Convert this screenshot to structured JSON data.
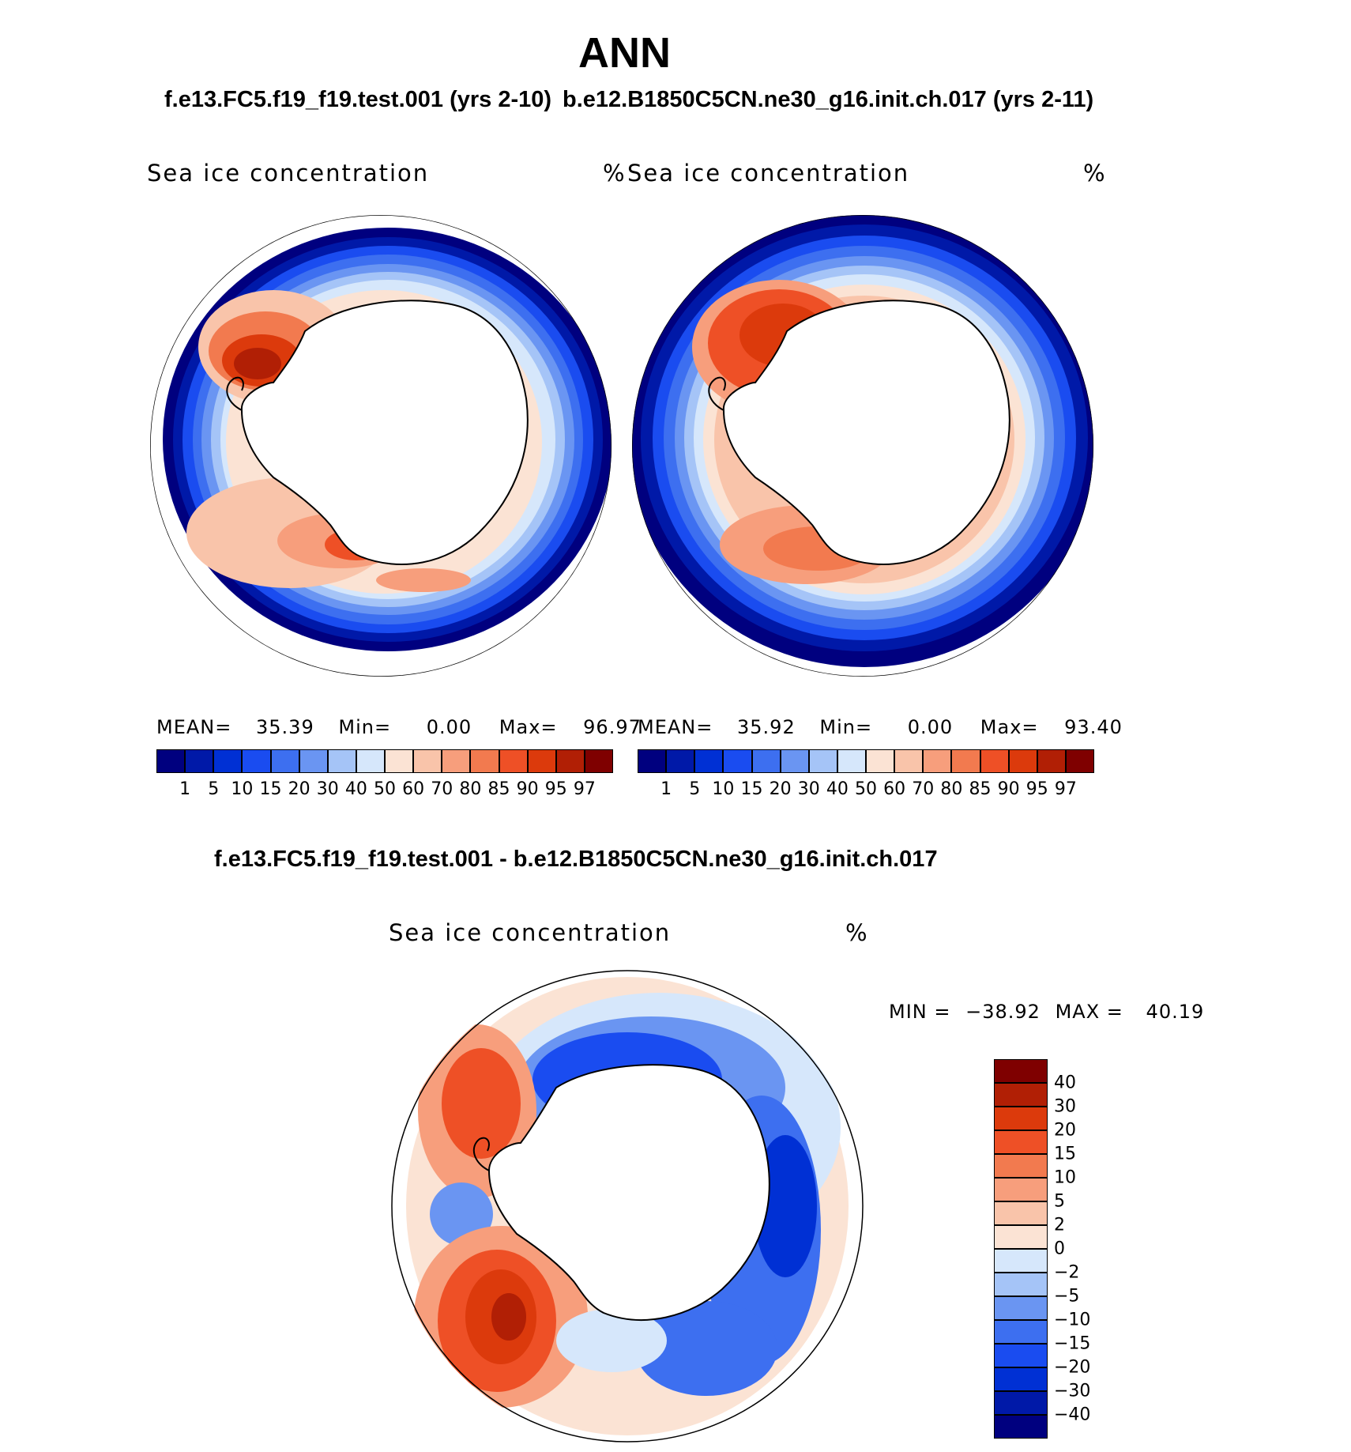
{
  "title": "ANN",
  "panels": [
    {
      "case_title": "f.e13.FC5.f19_f19.test.001 (yrs 2-10)",
      "variable_label": "Sea ice concentration",
      "units": "%",
      "stats": {
        "mean_label": "MEAN=",
        "mean": "35.39",
        "min_label": "Min=",
        "min": "0.00",
        "max_label": "Max=",
        "max": "96.97"
      }
    },
    {
      "case_title": "b.e12.B1850C5CN.ne30_g16.init.ch.017 (yrs 2-11)",
      "variable_label": "Sea ice concentration",
      "units": "%",
      "stats": {
        "mean_label": "MEAN=",
        "mean": "35.92",
        "min_label": "Min=",
        "min": "0.00",
        "max_label": "Max=",
        "max": "93.40"
      }
    }
  ],
  "abs_colorbar": {
    "labels": [
      "1",
      "5",
      "10",
      "15",
      "20",
      "30",
      "40",
      "50",
      "60",
      "70",
      "80",
      "85",
      "90",
      "95",
      "97"
    ],
    "colors": [
      "#00007f",
      "#0019a8",
      "#0030d4",
      "#1a4cf0",
      "#3d6ff0",
      "#6a95f2",
      "#a5c4f7",
      "#d6e7fb",
      "#fbe3d4",
      "#f9c4aa",
      "#f79e7c",
      "#f27a4f",
      "#ee5026",
      "#dc3a0c",
      "#b11f05",
      "#7f0000"
    ]
  },
  "diff": {
    "case_title": "f.e13.FC5.f19_f19.test.001 - b.e12.B1850C5CN.ne30_g16.init.ch.017",
    "variable_label": "Sea ice concentration",
    "units": "%",
    "minmax": {
      "min_label": "MIN =",
      "min": "−38.92",
      "max_label": "MAX =",
      "max": "40.19"
    },
    "colorbar": {
      "labels": [
        "40",
        "30",
        "20",
        "15",
        "10",
        "5",
        "2",
        "0",
        "−2",
        "−5",
        "−10",
        "−15",
        "−20",
        "−30",
        "−40"
      ],
      "colors": [
        "#7f0000",
        "#b11f05",
        "#dc3a0c",
        "#ee5026",
        "#f27a4f",
        "#f79e7c",
        "#f9c4aa",
        "#fbe3d4",
        "#d6e7fb",
        "#a5c4f7",
        "#6a95f2",
        "#3d6ff0",
        "#1a4cf0",
        "#0030d4",
        "#0019a8",
        "#00007f"
      ]
    }
  }
}
